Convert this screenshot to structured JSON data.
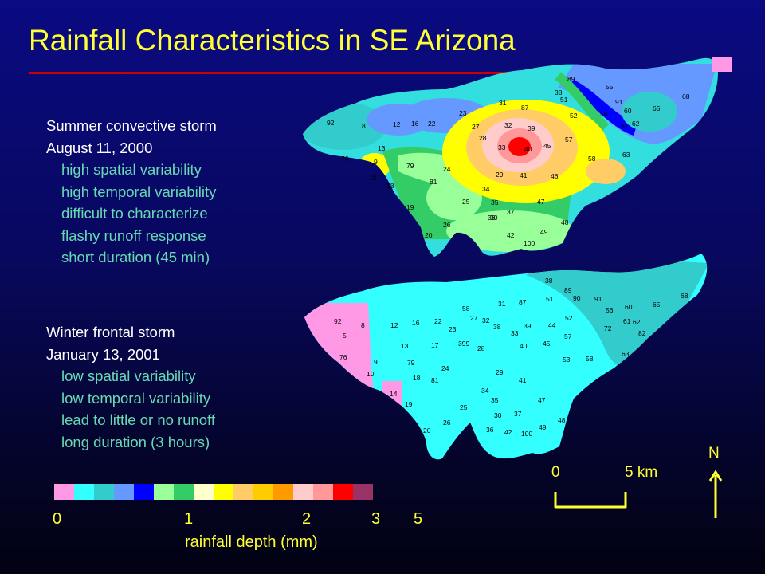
{
  "slide": {
    "title": "Rainfall Characteristics in SE Arizona",
    "colors": {
      "title": "#ffff33",
      "rule": "#cc0000",
      "heading": "#ffffff",
      "bullet": "#66d9b3"
    }
  },
  "storms": [
    {
      "heading": "Summer convective storm",
      "date": "August 11, 2000",
      "bullets": [
        "high spatial variability",
        "high temporal variability",
        "difficult to characterize",
        "flashy runoff response",
        "short duration (45 min)"
      ]
    },
    {
      "heading": "Winter frontal storm",
      "date": "January 13, 2001",
      "bullets": [
        "low spatial variability",
        "low temporal variability",
        "lead to little or no runoff",
        "long duration (3 hours)"
      ]
    }
  ],
  "gauges": [
    "92",
    "8",
    "12",
    "16",
    "22",
    "23",
    "27",
    "28",
    "31",
    "32",
    "33",
    "34",
    "35",
    "36",
    "37",
    "38",
    "39",
    "40",
    "41",
    "42",
    "45",
    "46",
    "47",
    "48",
    "49",
    "51",
    "52",
    "55",
    "56",
    "57",
    "58",
    "60",
    "61",
    "62",
    "63",
    "65",
    "68",
    "76",
    "79",
    "81",
    "87",
    "89",
    "90",
    "91",
    "100",
    "5",
    "9",
    "10",
    "13",
    "14",
    "17",
    "18",
    "19",
    "20",
    "24",
    "25",
    "26",
    "29",
    "30",
    "44",
    "53",
    "72",
    "82",
    "83",
    "86"
  ],
  "legend": {
    "colors": [
      "#ff99e6",
      "#33ffff",
      "#33cccc",
      "#6699ff",
      "#0000ff",
      "#99ff99",
      "#33cc66",
      "#ffffcc",
      "#ffff00",
      "#ffcc66",
      "#ffcc00",
      "#ff9900",
      "#ffcccc",
      "#ff9999",
      "#ff0000",
      "#993366"
    ],
    "ticks": [
      "0",
      "1",
      "2",
      "3",
      "5"
    ],
    "label": "rainfall depth (mm)"
  },
  "scale": {
    "start": "0",
    "end": "5 km"
  },
  "north": "N"
}
